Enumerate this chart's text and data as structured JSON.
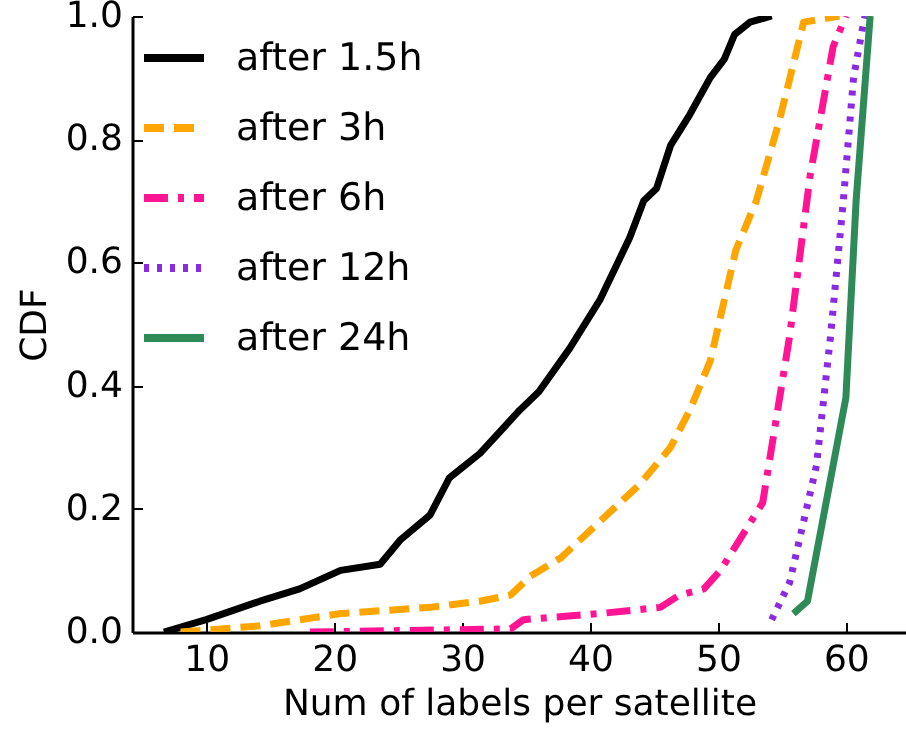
{
  "chart_data": {
    "type": "line",
    "xlabel": "Num of labels per satellite",
    "ylabel": "CDF",
    "xlim": [
      4.2,
      64.7
    ],
    "xticks": [
      10,
      20,
      30,
      40,
      50,
      60
    ],
    "ylim": [
      0,
      1
    ],
    "yticks": [
      {
        "value": 0,
        "label": "0.0"
      },
      {
        "value": 0.2,
        "label": "0.2"
      },
      {
        "value": 0.4,
        "label": "0.4"
      },
      {
        "value": 0.6,
        "label": "0.6"
      },
      {
        "value": 0.8,
        "label": "0.8"
      },
      {
        "value": 1,
        "label": "1.0"
      }
    ],
    "grid": false,
    "legend": "top left",
    "marker": "none",
    "series": [
      {
        "name": "after 1.5h",
        "color": "#000000",
        "line_style": "solid",
        "x": [
          6.7,
          10,
          14.2,
          17.3,
          20.5,
          23.6,
          25.2,
          27.5,
          29,
          31.4,
          34.5,
          36,
          38.4,
          40.8,
          43.1,
          44.2,
          45.2,
          46.3,
          47.8,
          49.4,
          50.5,
          51.3,
          52.5,
          54.2
        ],
        "values": [
          0,
          0.02,
          0.05,
          0.07,
          0.1,
          0.11,
          0.15,
          0.19,
          0.25,
          0.29,
          0.36,
          0.39,
          0.46,
          0.54,
          0.64,
          0.7,
          0.72,
          0.79,
          0.84,
          0.9,
          0.93,
          0.97,
          0.99,
          1
        ]
      },
      {
        "name": "after 3h",
        "color": "#ffa500",
        "line_style": "dashed",
        "x": [
          8,
          14.2,
          20.5,
          27.5,
          31.4,
          33.8,
          35.3,
          37.7,
          40.8,
          43.9,
          46.3,
          47.8,
          49.4,
          51.4,
          53,
          54.8,
          56.7,
          59.5
        ],
        "values": [
          0,
          0.01,
          0.03,
          0.04,
          0.05,
          0.06,
          0.09,
          0.12,
          0.18,
          0.24,
          0.3,
          0.36,
          0.44,
          0.62,
          0.7,
          0.83,
          0.99,
          1
        ]
      },
      {
        "name": "after 6h",
        "color": "#ff1493",
        "line_style": "dashdot",
        "x": [
          18.1,
          33.8,
          34.8,
          40.8,
          45.5,
          47,
          48.9,
          50.2,
          51.7,
          53.5,
          55.6,
          57.2,
          59,
          60
        ],
        "values": [
          0,
          0.005,
          0.02,
          0.03,
          0.04,
          0.06,
          0.07,
          0.1,
          0.15,
          0.21,
          0.48,
          0.74,
          0.95,
          1
        ]
      },
      {
        "name": "after 12h",
        "color": "#8a2be2",
        "line_style": "dotted",
        "x": [
          54.2,
          55.6,
          57.7,
          58.8,
          59.8,
          60.6,
          61.3,
          61.5
        ],
        "values": [
          0.02,
          0.08,
          0.27,
          0.48,
          0.7,
          0.9,
          0.98,
          1
        ]
      },
      {
        "name": "after 24h",
        "color": "#2e8b57",
        "line_style": "solid",
        "x": [
          55.9,
          57,
          60,
          60.8,
          61.9
        ],
        "values": [
          0.03,
          0.05,
          0.38,
          0.7,
          1
        ]
      }
    ]
  }
}
